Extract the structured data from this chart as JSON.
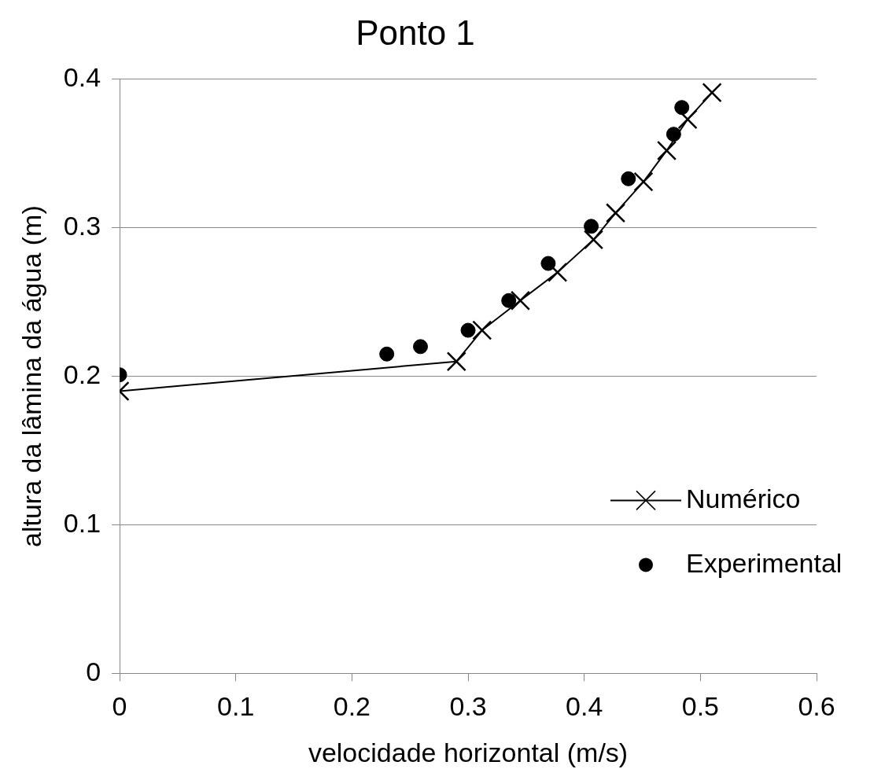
{
  "chart_data": {
    "type": "line",
    "title": "Ponto 1",
    "xlabel": "velocidade horizontal (m/s)",
    "ylabel": "altura da lâmina da água (m)",
    "xlim": [
      0,
      0.6
    ],
    "xticks": [
      0,
      0.1,
      0.2,
      0.3,
      0.4,
      0.5,
      0.6
    ],
    "ylim": [
      0,
      0.4
    ],
    "yticks": [
      0,
      0.1,
      0.2,
      0.3,
      0.4
    ],
    "grid": "y",
    "legend": "bottom right",
    "series": [
      {
        "name": "Numérico",
        "type": "line",
        "color": "#000000",
        "marker": "cross",
        "line_style": "solid",
        "x": [
          0,
          0.29,
          0.312,
          0.345,
          0.377,
          0.408,
          0.427,
          0.451,
          0.471,
          0.489,
          0.51
        ],
        "values": [
          0.19,
          0.21,
          0.231,
          0.251,
          0.27,
          0.292,
          0.31,
          0.331,
          0.352,
          0.373,
          0.391
        ]
      },
      {
        "name": "Experimental",
        "type": "scatter",
        "color": "#000000",
        "marker": "circle",
        "x": [
          0,
          0.23,
          0.259,
          0.3,
          0.335,
          0.369,
          0.406,
          0.438,
          0.477,
          0.484
        ],
        "values": [
          0.201,
          0.215,
          0.22,
          0.231,
          0.251,
          0.276,
          0.301,
          0.333,
          0.363,
          0.381
        ]
      }
    ]
  }
}
